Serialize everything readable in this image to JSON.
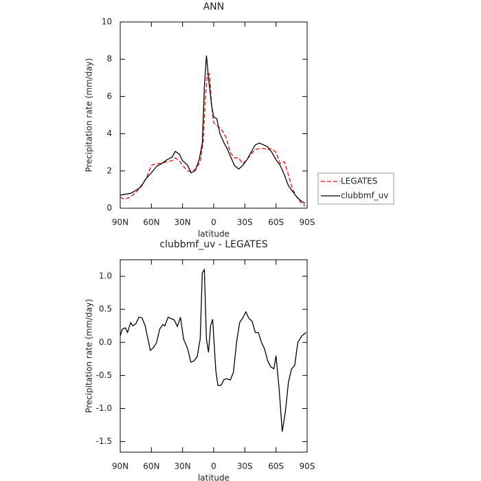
{
  "chart_data": [
    {
      "type": "line",
      "title": "ANN",
      "xlabel": "latitude",
      "ylabel": "Precipitation rate (mm/day)",
      "xlim": [
        90,
        -90
      ],
      "xticks": [
        {
          "value": 90,
          "label": "90N"
        },
        {
          "value": 60,
          "label": "60N"
        },
        {
          "value": 30,
          "label": "30N"
        },
        0,
        {
          "value": -30,
          "label": "30S"
        },
        {
          "value": -60,
          "label": "60S"
        },
        {
          "value": -90,
          "label": "90S"
        }
      ],
      "ylim": [
        0,
        10
      ],
      "yticks": [
        0,
        2,
        4,
        6,
        8,
        10
      ],
      "legend": "right",
      "series": [
        {
          "name": "LEGATES",
          "color": "#ff0000",
          "dash": true,
          "x": [
            90,
            87,
            82,
            78,
            74,
            70,
            65,
            60,
            55,
            50,
            45,
            40,
            37,
            33,
            30,
            25,
            21,
            17,
            13,
            10,
            8,
            6,
            4,
            2,
            0,
            -4,
            -8,
            -12,
            -16,
            -20,
            -24,
            -28,
            -32,
            -36,
            -40,
            -44,
            -48,
            -52,
            -56,
            -60,
            -64,
            -68,
            -72,
            -76,
            -80,
            -84,
            -88
          ],
          "values": [
            0.6,
            0.5,
            0.55,
            0.7,
            0.9,
            1.2,
            1.6,
            2.3,
            2.4,
            2.4,
            2.5,
            2.55,
            2.7,
            2.55,
            2.3,
            2.0,
            2.0,
            2.1,
            2.5,
            3.6,
            6.0,
            7.2,
            7.2,
            5.5,
            4.6,
            4.4,
            4.2,
            3.8,
            3.0,
            2.7,
            2.7,
            2.4,
            2.6,
            2.9,
            3.15,
            3.2,
            3.2,
            3.15,
            3.2,
            3.0,
            2.4,
            2.5,
            1.8,
            1.0,
            0.6,
            0.3,
            0.1
          ]
        },
        {
          "name": "clubbmf_uv",
          "color": "#000000",
          "dash": false,
          "x": [
            90,
            85,
            80,
            75,
            70,
            65,
            60,
            55,
            50,
            45,
            40,
            37,
            33,
            30,
            25,
            22,
            18,
            14,
            11,
            9,
            7,
            5,
            2,
            0,
            -3,
            -6,
            -10,
            -13,
            -16,
            -20,
            -24,
            -28,
            -32,
            -36,
            -40,
            -44,
            -48,
            -52,
            -56,
            -60,
            -64,
            -68,
            -72,
            -76,
            -80,
            -84,
            -88
          ],
          "values": [
            0.7,
            0.75,
            0.8,
            0.95,
            1.15,
            1.6,
            1.9,
            2.25,
            2.4,
            2.6,
            2.75,
            3.05,
            2.9,
            2.55,
            2.3,
            1.9,
            2.0,
            2.6,
            3.5,
            6.5,
            8.2,
            7.0,
            5.5,
            4.9,
            4.8,
            4.0,
            3.5,
            3.2,
            2.8,
            2.3,
            2.1,
            2.3,
            2.6,
            3.0,
            3.4,
            3.5,
            3.4,
            3.3,
            3.0,
            2.6,
            2.3,
            1.8,
            1.2,
            0.9,
            0.6,
            0.4,
            0.25
          ]
        }
      ]
    },
    {
      "type": "line",
      "title": "clubbmf_uv - LEGATES",
      "xlabel": "latitude",
      "ylabel": "Precipitation rate (mm/day)",
      "xlim": [
        90,
        -90
      ],
      "xticks": [
        {
          "value": 90,
          "label": "90N"
        },
        {
          "value": 60,
          "label": "60N"
        },
        {
          "value": 30,
          "label": "30N"
        },
        0,
        {
          "value": -30,
          "label": "30S"
        },
        {
          "value": -60,
          "label": "60S"
        },
        {
          "value": -90,
          "label": "90S"
        }
      ],
      "ylim": [
        -1.66,
        1.25
      ],
      "yticks": [
        {
          "value": 1,
          "label": "1.0"
        },
        0.5,
        {
          "value": 0,
          "label": "0.0"
        },
        -0.5,
        {
          "value": -1,
          "label": "-1.0"
        },
        -1.5
      ],
      "series": [
        {
          "color": "#000000",
          "dash": false,
          "x": [
            90,
            88,
            85,
            83,
            80,
            78,
            75,
            72,
            69,
            66,
            64,
            61,
            58,
            55,
            52,
            49,
            47,
            44,
            41,
            38,
            35,
            32,
            29,
            25,
            22,
            19,
            16,
            13,
            11,
            9,
            7,
            5,
            3,
            1,
            -2,
            -4,
            -7,
            -10,
            -13,
            -16,
            -19,
            -22,
            -25,
            -28,
            -31,
            -34,
            -37,
            -40,
            -43,
            -46,
            -49,
            -52,
            -55,
            -58,
            -60,
            -63,
            -66,
            -69,
            -72,
            -75,
            -78,
            -81,
            -85,
            -89
          ],
          "values": [
            0.1,
            0.2,
            0.22,
            0.15,
            0.3,
            0.25,
            0.28,
            0.38,
            0.37,
            0.25,
            0.1,
            -0.12,
            -0.08,
            0.0,
            0.2,
            0.27,
            0.25,
            0.38,
            0.36,
            0.34,
            0.24,
            0.38,
            0.05,
            -0.1,
            -0.3,
            -0.28,
            -0.22,
            0.05,
            1.05,
            1.1,
            0.05,
            -0.15,
            0.25,
            0.35,
            -0.42,
            -0.65,
            -0.65,
            -0.56,
            -0.55,
            -0.57,
            -0.45,
            0.0,
            0.3,
            0.37,
            0.46,
            0.36,
            0.32,
            0.15,
            0.15,
            0.0,
            -0.1,
            -0.28,
            -0.37,
            -0.4,
            -0.2,
            -0.7,
            -1.35,
            -1.05,
            -0.6,
            -0.4,
            -0.35,
            0.0,
            0.1,
            0.15
          ]
        }
      ]
    }
  ]
}
